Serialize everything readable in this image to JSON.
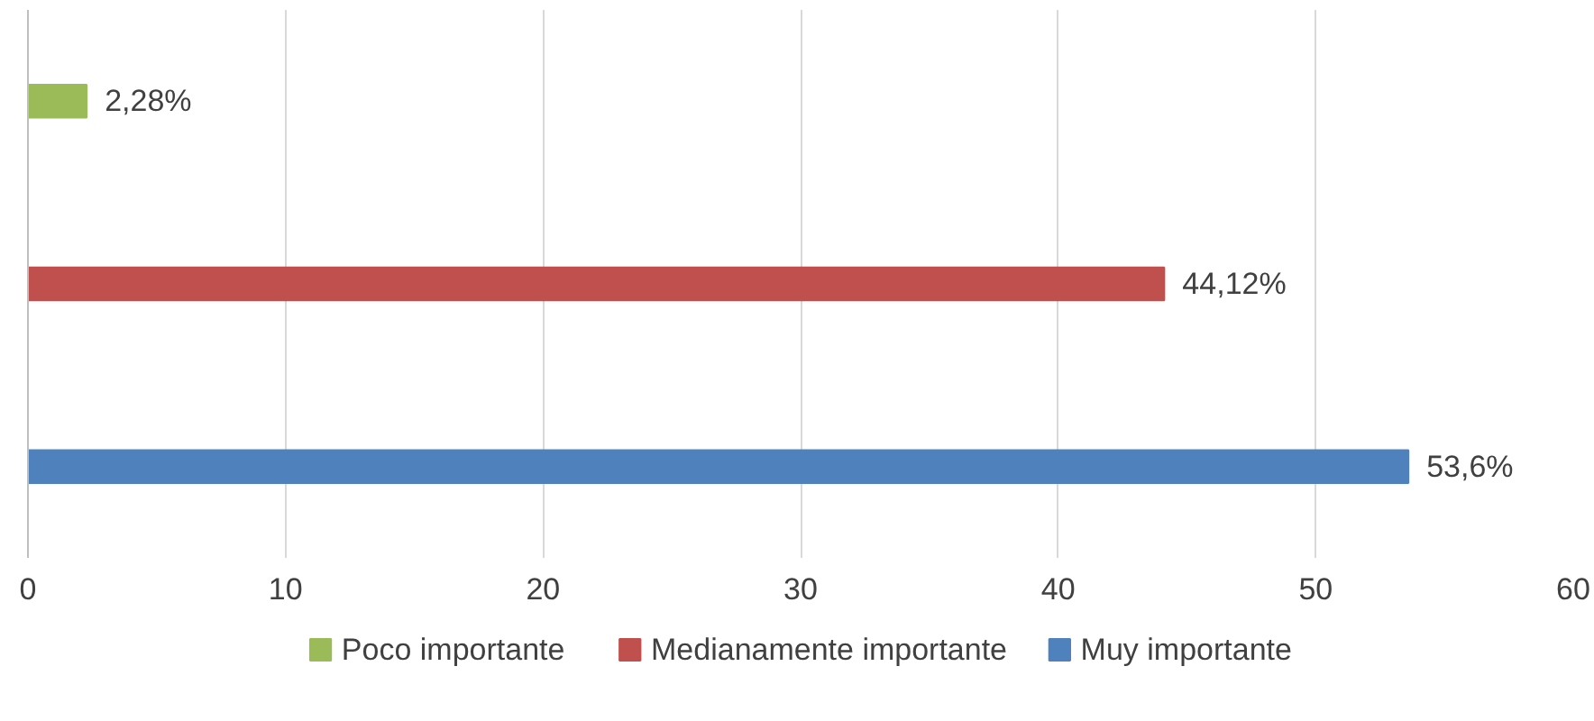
{
  "chart_data": {
    "type": "bar",
    "orientation": "horizontal",
    "categories": [
      null,
      null,
      null
    ],
    "series": [
      {
        "name": "Poco importante",
        "color": "#9bbb59",
        "values": [
          2.28,
          null,
          null
        ],
        "value_labels": [
          "2,28%",
          null,
          null
        ]
      },
      {
        "name": "Medianamente importante",
        "color": "#c0504d",
        "values": [
          null,
          44.12,
          null
        ],
        "value_labels": [
          null,
          "44,12%",
          null
        ]
      },
      {
        "name": "Muy importante",
        "color": "#4f81bd",
        "values": [
          null,
          null,
          53.6
        ],
        "value_labels": [
          null,
          null,
          "53,6%"
        ]
      }
    ],
    "xlim": [
      0,
      60
    ],
    "xticks": [
      0,
      10,
      20,
      30,
      40,
      50,
      60
    ],
    "grid": "x",
    "legend": "bottom",
    "tick_labels": "x"
  }
}
